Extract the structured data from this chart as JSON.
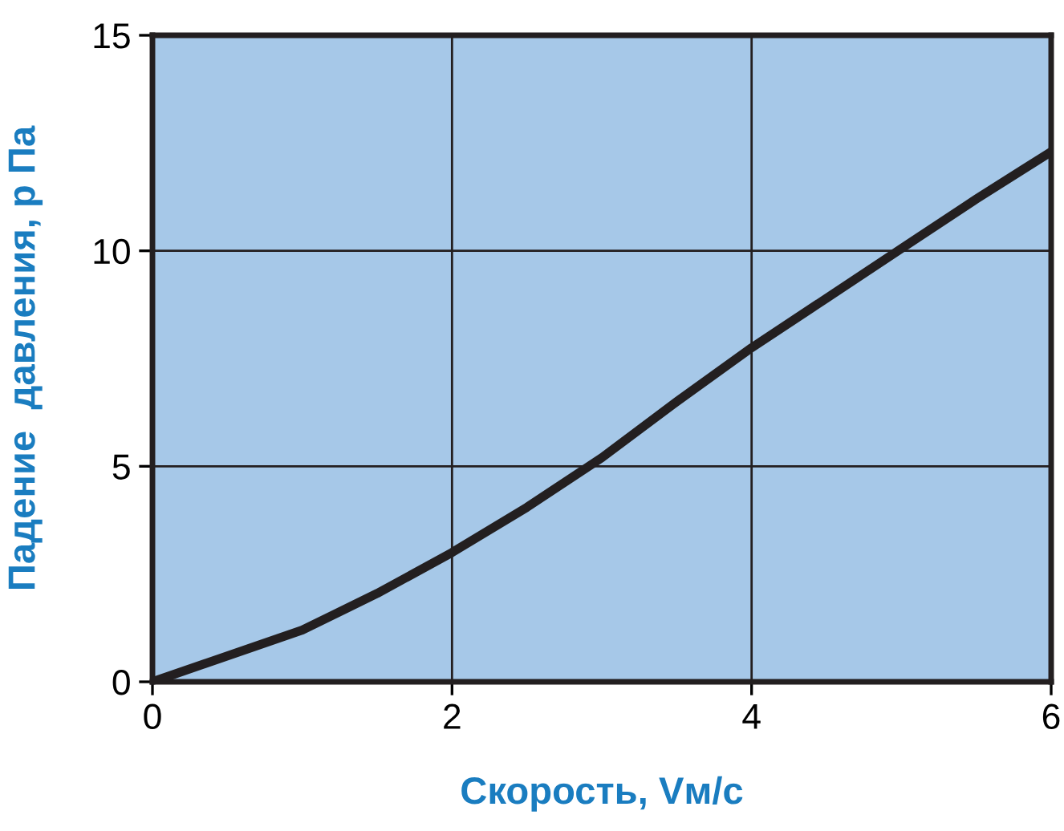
{
  "chart_data": {
    "type": "line",
    "xlabel": "Скорость, Vм/с",
    "ylabel": "Падение  давления, р Па",
    "x": [
      0,
      0.5,
      1,
      1.5,
      2,
      2.5,
      3,
      3.5,
      4,
      4.5,
      5,
      5.5,
      6
    ],
    "series": [
      {
        "color": "#231f20",
        "values": [
          0,
          0.6,
          1.2,
          2.05,
          3.0,
          4.05,
          5.2,
          6.5,
          7.75,
          8.9,
          10.05,
          11.2,
          12.3
        ]
      }
    ],
    "xlim": [
      0,
      6
    ],
    "ylim": [
      0,
      15
    ],
    "xticks": [
      0,
      2,
      4,
      6
    ],
    "yticks": [
      0,
      5,
      10,
      15
    ],
    "grid": true,
    "marker": "none",
    "line_style": "solid"
  }
}
